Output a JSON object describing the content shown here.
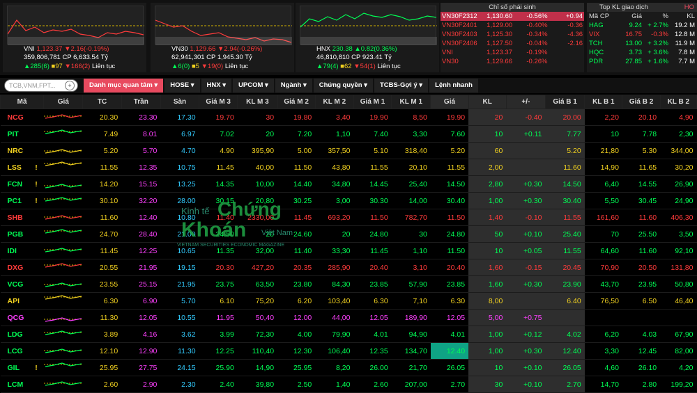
{
  "indices": [
    {
      "name": "VNI",
      "value": "1,123.37",
      "change": "▼2.16(-0.19%)",
      "vol": "359,806,781 CP",
      "val": "6,633.54 Tỷ",
      "up": "▲285(6)",
      "ref": "■97",
      "down": "▼166(2)",
      "status": "Liên tục",
      "color": "#ff3b3b"
    },
    {
      "name": "VN30",
      "value": "1,129.66",
      "change": "▼2.94(-0.26%)",
      "vol": "62,941,301 CP",
      "val": "1,945.30 Tỷ",
      "up": "▲6(0)",
      "ref": "■5",
      "down": "▼19(0)",
      "status": "Liên tục",
      "color": "#ff3b3b"
    },
    {
      "name": "HNX",
      "value": "230.38",
      "change": "▲0.82(0.36%)",
      "vol": "46,810,810 CP",
      "val": "923.41 Tỷ",
      "up": "▲79(4)",
      "ref": "■62",
      "down": "▼54(1)",
      "status": "Liên tục",
      "color": "#00ff55"
    }
  ],
  "futures": {
    "title": "Chỉ số phái sinh",
    "rows": [
      [
        "VN30F2312",
        "1,130.60",
        "-0.56%",
        "+0.94"
      ],
      [
        "VN30F2401",
        "1,129.00",
        "-0.40%",
        "-0.36"
      ],
      [
        "VN30F2403",
        "1,125.30",
        "-0.34%",
        "-4.36"
      ],
      [
        "VN30F2406",
        "1,127.50",
        "-0.04%",
        "-2.16"
      ],
      [
        "VNI",
        "1,123.37",
        "-0.19%",
        ""
      ],
      [
        "VN30",
        "1,129.66",
        "-0.26%",
        ""
      ]
    ]
  },
  "topkl": {
    "title": "Top KL giao dịch",
    "tag": "HO",
    "cols": [
      "Mã CP",
      "Giá",
      "%",
      "KL"
    ],
    "rows": [
      [
        "HAG",
        "9.24",
        "+ 2.7%",
        "19.2 M"
      ],
      [
        "VIX",
        "16.75",
        "-0.3%",
        "12.8 M"
      ],
      [
        "TCH",
        "13.00",
        "+ 3.2%",
        "11.9 M"
      ],
      [
        "HQC",
        "3.73",
        "+ 3.6%",
        "7.8 M"
      ],
      [
        "PDR",
        "27.85",
        "+ 1.6%",
        "7.7 M"
      ]
    ]
  },
  "toolbar": {
    "search_placeholder": "TCB,VNM,FPT...",
    "tabs": [
      "Danh mục quan tâm",
      "HOSE",
      "HNX",
      "UPCOM",
      "Ngành",
      "Chứng quyền",
      "TCBS-Gợi ý",
      "Lệnh nhanh"
    ]
  },
  "table": {
    "headers": [
      "Mã",
      "Giá",
      "TC",
      "Trần",
      "Sàn",
      "Giá M 3",
      "KL M 3",
      "Giá M 2",
      "KL M 2",
      "Giá M 1",
      "KL M 1",
      "Giá",
      "KL",
      "+/-",
      "Giá B 1",
      "KL B 1",
      "Giá B 2",
      "KL B 2"
    ],
    "rows": [
      {
        "s": "NCG",
        "c": "r",
        "ex": "",
        "v": [
          "20.30",
          "23.30",
          "17.30",
          "19.70",
          "30",
          "19.80",
          "3,40",
          "19.90",
          "8,50",
          "19.90",
          "20",
          "-0.40",
          "20.00",
          "2,20",
          "20.10",
          "4,90"
        ]
      },
      {
        "s": "PIT",
        "c": "g",
        "ex": "",
        "v": [
          "7.49",
          "8.01",
          "6.97",
          "7.02",
          "20",
          "7.20",
          "1,10",
          "7.40",
          "3,30",
          "7.60",
          "10",
          "+0.11",
          "7.77",
          "10",
          "7.78",
          "2,30"
        ]
      },
      {
        "s": "NRC",
        "c": "y",
        "ex": "",
        "v": [
          "5.20",
          "5.70",
          "4.70",
          "4.90",
          "395,90",
          "5.00",
          "357,50",
          "5.10",
          "318,40",
          "5.20",
          "60",
          "",
          "5.20",
          "21,80",
          "5.30",
          "344,00"
        ]
      },
      {
        "s": "LSS",
        "c": "y",
        "ex": "!",
        "v": [
          "11.55",
          "12.35",
          "10.75",
          "11.45",
          "40,00",
          "11.50",
          "43,80",
          "11.55",
          "20,10",
          "11.55",
          "2,00",
          "",
          "11.60",
          "14,90",
          "11.65",
          "30,20"
        ]
      },
      {
        "s": "FCN",
        "c": "g",
        "ex": "!",
        "v": [
          "14.20",
          "15.15",
          "13.25",
          "14.35",
          "10,00",
          "14.40",
          "34,80",
          "14.45",
          "25,40",
          "14.50",
          "2,80",
          "+0.30",
          "14.50",
          "6,40",
          "14.55",
          "26,90"
        ]
      },
      {
        "s": "PC1",
        "c": "g",
        "ex": "!",
        "v": [
          "30.10",
          "32.20",
          "28.00",
          "30.15",
          "20,80",
          "30.25",
          "3,00",
          "30.30",
          "14,00",
          "30.40",
          "1,00",
          "+0.30",
          "30.40",
          "5,50",
          "30.45",
          "24,90"
        ]
      },
      {
        "s": "SHB",
        "c": "r",
        "ex": "",
        "v": [
          "11.60",
          "12.40",
          "10.80",
          "11.40",
          "2330,00",
          "11.45",
          "693,20",
          "11.50",
          "782,70",
          "11.50",
          "1,40",
          "-0.10",
          "11.55",
          "161,60",
          "11.60",
          "406,30"
        ]
      },
      {
        "s": "PGB",
        "c": "g",
        "ex": "",
        "v": [
          "24.70",
          "28.40",
          "21.00",
          "24.50",
          "20",
          "24.60",
          "20",
          "24.80",
          "30",
          "24.80",
          "50",
          "+0.10",
          "25.40",
          "70",
          "25.50",
          "3,50"
        ]
      },
      {
        "s": "IDI",
        "c": "g",
        "ex": "",
        "v": [
          "11.45",
          "12.25",
          "10.65",
          "11.35",
          "32,00",
          "11.40",
          "33,30",
          "11.45",
          "1,10",
          "11.50",
          "10",
          "+0.05",
          "11.55",
          "64,60",
          "11.60",
          "92,10"
        ]
      },
      {
        "s": "DXG",
        "c": "r",
        "ex": "",
        "v": [
          "20.55",
          "21.95",
          "19.15",
          "20.30",
          "427,20",
          "20.35",
          "285,90",
          "20.40",
          "3,10",
          "20.40",
          "1,60",
          "-0.15",
          "20.45",
          "70,90",
          "20.50",
          "131,80"
        ]
      },
      {
        "s": "VCG",
        "c": "g",
        "ex": "",
        "v": [
          "23.55",
          "25.15",
          "21.95",
          "23.75",
          "63,50",
          "23.80",
          "84,30",
          "23.85",
          "57,90",
          "23.85",
          "1,60",
          "+0.30",
          "23.90",
          "43,70",
          "23.95",
          "50,80"
        ]
      },
      {
        "s": "API",
        "c": "y",
        "ex": "",
        "v": [
          "6.30",
          "6.90",
          "5.70",
          "6.10",
          "75,20",
          "6.20",
          "103,40",
          "6.30",
          "7,10",
          "6.30",
          "8,00",
          "",
          "6.40",
          "76,50",
          "6.50",
          "46,40"
        ]
      },
      {
        "s": "QCG",
        "c": "c",
        "ex": "",
        "v": [
          "11.30",
          "12.05",
          "10.55",
          "11.95",
          "50,40",
          "12.00",
          "44,00",
          "12.05",
          "189,90",
          "12.05",
          "5,00",
          "+0.75",
          "",
          "",
          "",
          ""
        ]
      },
      {
        "s": "LDG",
        "c": "g",
        "ex": "",
        "v": [
          "3.89",
          "4.16",
          "3.62",
          "3.99",
          "72,30",
          "4.00",
          "79,90",
          "4.01",
          "94,90",
          "4.01",
          "1,00",
          "+0.12",
          "4.02",
          "6,20",
          "4.03",
          "67,90"
        ]
      },
      {
        "s": "LCG",
        "c": "g",
        "ex": "",
        "v": [
          "12.10",
          "12.90",
          "11.30",
          "12.25",
          "110,40",
          "12.30",
          "106,40",
          "12.35",
          "134,70",
          "12.40",
          "1,00",
          "+0.30",
          "12.40",
          "3,30",
          "12.45",
          "82,00"
        ]
      },
      {
        "s": "GIL",
        "c": "g",
        "ex": "!",
        "v": [
          "25.95",
          "27.75",
          "24.15",
          "25.90",
          "14,90",
          "25.95",
          "8,20",
          "26.00",
          "21,70",
          "26.05",
          "10",
          "+0.10",
          "26.05",
          "4,60",
          "26.10",
          "4,20"
        ]
      },
      {
        "s": "LCM",
        "c": "g",
        "ex": "",
        "v": [
          "2.60",
          "2.90",
          "2.30",
          "2.40",
          "39,80",
          "2.50",
          "1,40",
          "2.60",
          "207,00",
          "2.70",
          "30",
          "+0.10",
          "2.70",
          "14,70",
          "2.80",
          "199,20"
        ]
      }
    ]
  },
  "watermark": {
    "l1": "Kinh tế",
    "l2": "Chứng",
    "l3": "Khoán",
    "l4": "Việt Nam",
    "sub": "VIETNAM SECURITIES ECONOMIC MAGAZINE"
  }
}
